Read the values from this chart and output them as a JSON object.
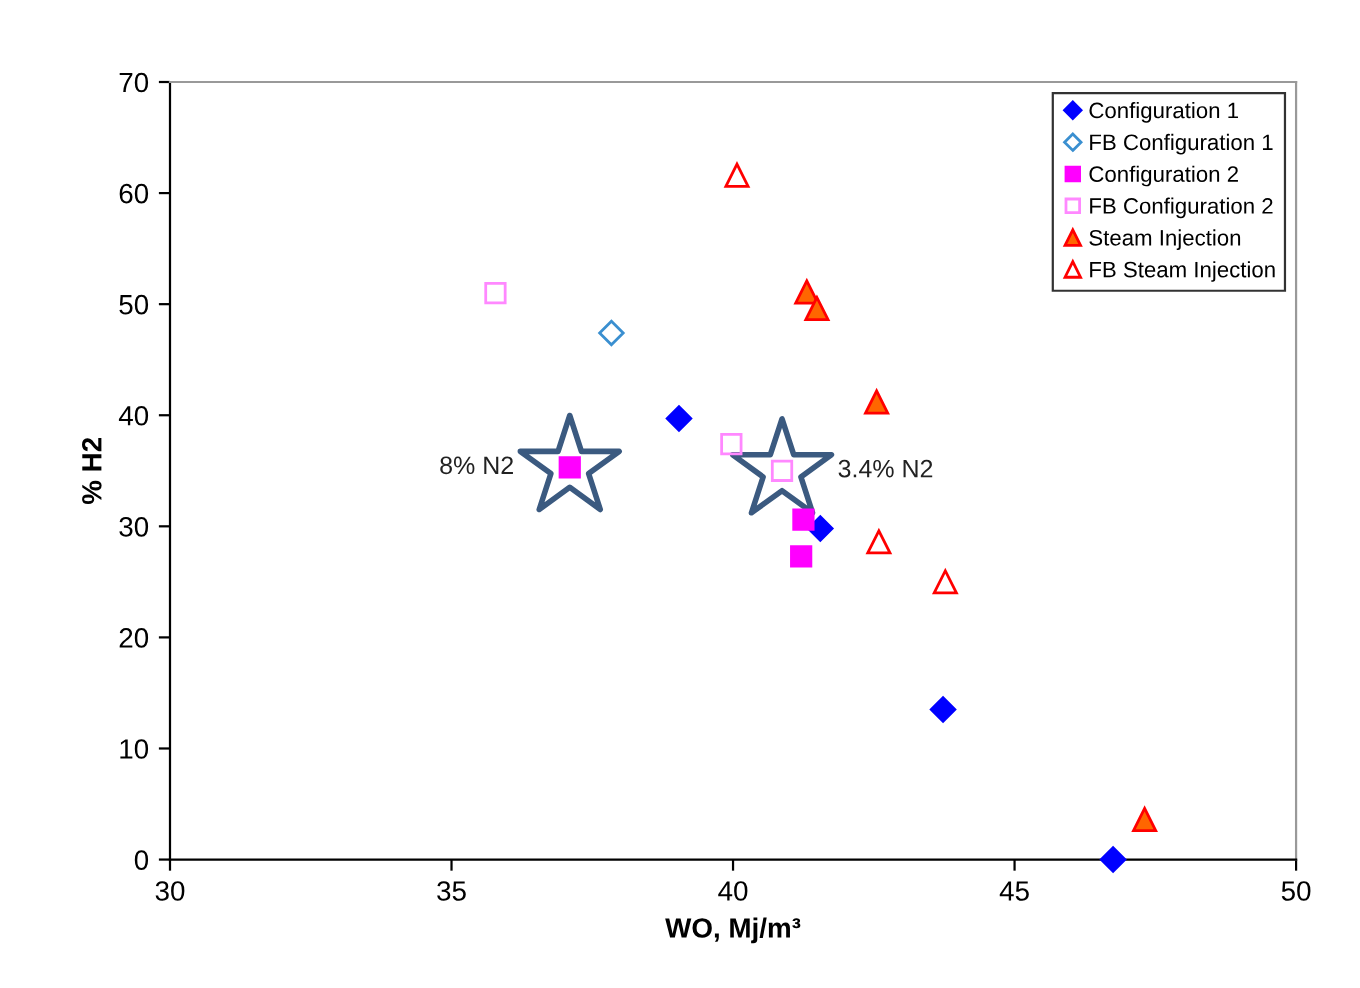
{
  "chart_data": {
    "type": "scatter",
    "xlabel": "WO, Mj/m³",
    "ylabel": "% H2",
    "xlim": [
      30,
      50
    ],
    "xticks": [
      30,
      35,
      40,
      45,
      50
    ],
    "ylim": [
      0,
      70
    ],
    "yticks": [
      0,
      10,
      20,
      30,
      40,
      50,
      60,
      70
    ],
    "grid": false,
    "legend": "top right",
    "series": [
      {
        "name": "Configuration 1",
        "color": "#0000ff",
        "marker": "diamond",
        "x": [
          39.04,
          41.55,
          43.73,
          46.75
        ],
        "values": [
          39.7,
          29.8,
          13.5,
          0
        ]
      },
      {
        "name": "FB Configuration 1",
        "color": "#3a8fd0",
        "marker": "diamond",
        "x": [
          37.84
        ],
        "values": [
          47.4
        ]
      },
      {
        "name": "Configuration 2",
        "color": "#ff00ff",
        "marker": "square",
        "x": [
          37.1,
          41.25,
          41.21
        ],
        "values": [
          35.3,
          30.6,
          27.3
        ]
      },
      {
        "name": "FB Configuration 2",
        "color": "#ff88ff",
        "marker": "square",
        "x": [
          35.78,
          39.97,
          40.87
        ],
        "values": [
          51.0,
          37.4,
          35.0
        ]
      },
      {
        "name": "Steam Injection",
        "color": "#ff6600",
        "marker": "triangle",
        "x": [
          41.31,
          41.49,
          42.55,
          47.31
        ],
        "values": [
          51.1,
          49.6,
          41.2,
          3.6
        ]
      },
      {
        "name": "FB Steam Injection",
        "color": "#ff0000",
        "marker": "triangle",
        "x": [
          40.07,
          42.59,
          43.77
        ],
        "values": [
          61.6,
          28.6,
          25.0
        ]
      }
    ],
    "annotations": [
      {
        "text": "8% N2",
        "x": 37.1,
        "y": 35.3
      },
      {
        "text": "3.4% N2",
        "x": 40.87,
        "y": 35.0
      }
    ]
  }
}
